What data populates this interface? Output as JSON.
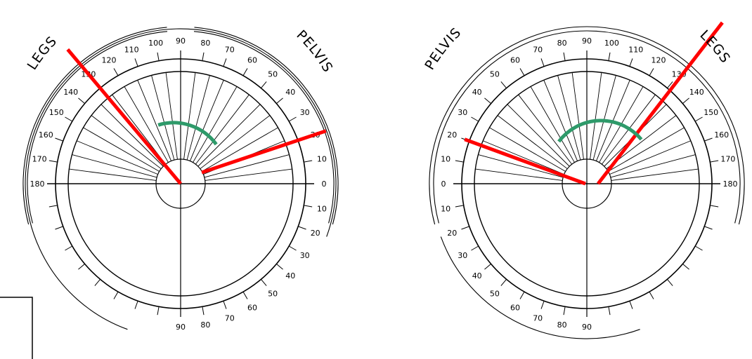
{
  "left_dial": {
    "legs_label": "LEGS",
    "pelvis_label": "PELVIS",
    "upper_scale": [
      "180",
      "170",
      "160",
      "150",
      "140",
      "130",
      "120",
      "110",
      "100",
      "90",
      "80",
      "70",
      "60",
      "50",
      "40",
      "30",
      "20",
      "10",
      "0"
    ],
    "lower_right_scale": [
      "10",
      "20",
      "30",
      "40",
      "50",
      "60",
      "70",
      "80",
      "90"
    ],
    "legs_line_angle": 130,
    "pelvis_line_angle": 20
  },
  "right_dial": {
    "legs_label": "LEGS",
    "pelvis_label": "PELVIS",
    "upper_scale": [
      "0",
      "10",
      "20",
      "30",
      "40",
      "50",
      "60",
      "70",
      "80",
      "90",
      "100",
      "110",
      "120",
      "130",
      "140",
      "150",
      "160",
      "170",
      "180"
    ],
    "lower_left_scale": [
      "10",
      "20",
      "30",
      "40",
      "50",
      "60",
      "70",
      "80",
      "90"
    ],
    "legs_line_angle": 130,
    "pelvis_line_angle": 20
  },
  "colors": {
    "ink": "#000000",
    "measure_line": "#ff0000",
    "arc_indicator": "#2e9a6a"
  }
}
